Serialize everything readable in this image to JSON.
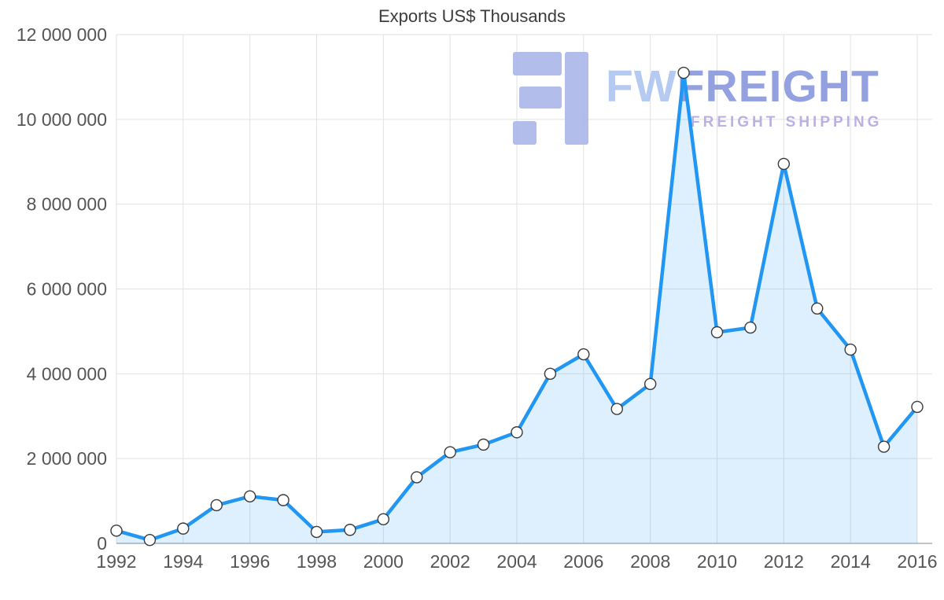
{
  "page": {
    "title": "Exports US$ Thousands"
  },
  "watermark": {
    "brand_primary": "FW",
    "brand_secondary": "FREIGHT",
    "tagline": "FREIGHT SHIPPING",
    "logo_icon": "fwfreight-logo",
    "colors": {
      "logo": "#a9b5e9",
      "brand_light": "#aac3f0",
      "brand_dark": "#8595dd",
      "tagline": "#b3a7df"
    }
  },
  "chart_data": {
    "type": "area",
    "title": "Exports US$ Thousands",
    "x": [
      1992,
      1993,
      1994,
      1995,
      1996,
      1997,
      1998,
      1999,
      2000,
      2001,
      2002,
      2003,
      2004,
      2005,
      2006,
      2007,
      2008,
      2009,
      2010,
      2011,
      2012,
      2013,
      2014,
      2015,
      2016
    ],
    "series": [
      {
        "name": "Exports US$ Thousands",
        "values": [
          300000,
          80000,
          350000,
          900000,
          1110000,
          1020000,
          270000,
          320000,
          570000,
          1560000,
          2150000,
          2330000,
          2620000,
          4000000,
          4460000,
          3170000,
          3760000,
          11100000,
          4980000,
          5090000,
          8950000,
          5540000,
          4570000,
          2280000,
          3220000
        ]
      }
    ],
    "xlabel": "",
    "ylabel": "",
    "ylim": [
      0,
      12000000
    ],
    "y_ticks": [
      0,
      2000000,
      4000000,
      6000000,
      8000000,
      10000000,
      12000000
    ],
    "x_ticks": [
      1992,
      1994,
      1996,
      1998,
      2000,
      2002,
      2004,
      2006,
      2008,
      2010,
      2012,
      2014,
      2016
    ],
    "grid": true,
    "legend": "none",
    "number_format": "space-grouped",
    "colors": {
      "line": "#2196f3",
      "fill": "rgba(33,150,243,0.15)",
      "marker_fill": "#ffffff",
      "marker_stroke": "#3a3a3a",
      "grid": "#e2e2e2",
      "axis": "#9e9e9e",
      "tick_text": "#555555",
      "title_text": "#3c3c3c"
    }
  }
}
